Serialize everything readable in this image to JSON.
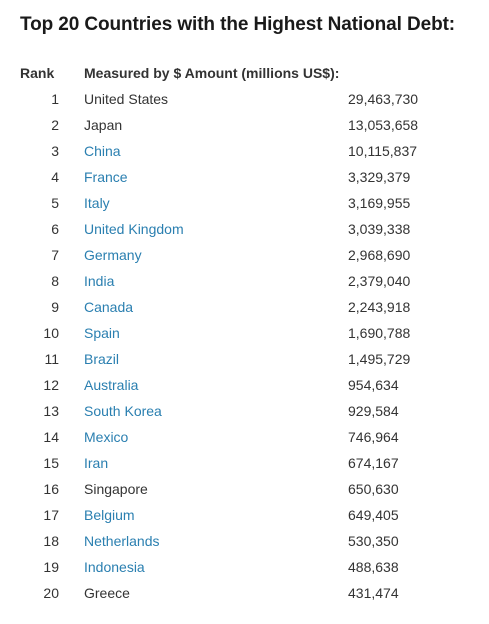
{
  "title": "Top 20 Countries with the Highest National Debt:",
  "table": {
    "headers": {
      "rank": "Rank",
      "amount": "Measured by $ Amount (millions US$):"
    },
    "link_color": "#2a7fb0",
    "rows": [
      {
        "rank": "1",
        "country": "United States",
        "amount": "29,463,730",
        "link": false
      },
      {
        "rank": "2",
        "country": "Japan",
        "amount": "13,053,658",
        "link": false
      },
      {
        "rank": "3",
        "country": "China",
        "amount": "10,115,837",
        "link": true
      },
      {
        "rank": "4",
        "country": "France",
        "amount": "3,329,379",
        "link": true
      },
      {
        "rank": "5",
        "country": "Italy",
        "amount": "3,169,955",
        "link": true
      },
      {
        "rank": "6",
        "country": "United Kingdom",
        "amount": "3,039,338",
        "link": true
      },
      {
        "rank": "7",
        "country": "Germany",
        "amount": "2,968,690",
        "link": true
      },
      {
        "rank": "8",
        "country": "India",
        "amount": "2,379,040",
        "link": true
      },
      {
        "rank": "9",
        "country": "Canada",
        "amount": "2,243,918",
        "link": true
      },
      {
        "rank": "10",
        "country": "Spain",
        "amount": "1,690,788",
        "link": true
      },
      {
        "rank": "11",
        "country": "Brazil",
        "amount": "1,495,729",
        "link": true
      },
      {
        "rank": "12",
        "country": "Australia",
        "amount": "954,634",
        "link": true
      },
      {
        "rank": "13",
        "country": "South Korea",
        "amount": "929,584",
        "link": true
      },
      {
        "rank": "14",
        "country": "Mexico",
        "amount": "746,964",
        "link": true
      },
      {
        "rank": "15",
        "country": "Iran",
        "amount": "674,167",
        "link": true
      },
      {
        "rank": "16",
        "country": "Singapore",
        "amount": "650,630",
        "link": false
      },
      {
        "rank": "17",
        "country": "Belgium",
        "amount": "649,405",
        "link": true
      },
      {
        "rank": "18",
        "country": "Netherlands",
        "amount": "530,350",
        "link": true
      },
      {
        "rank": "19",
        "country": "Indonesia",
        "amount": "488,638",
        "link": true
      },
      {
        "rank": "20",
        "country": "Greece",
        "amount": "431,474",
        "link": false
      }
    ]
  }
}
